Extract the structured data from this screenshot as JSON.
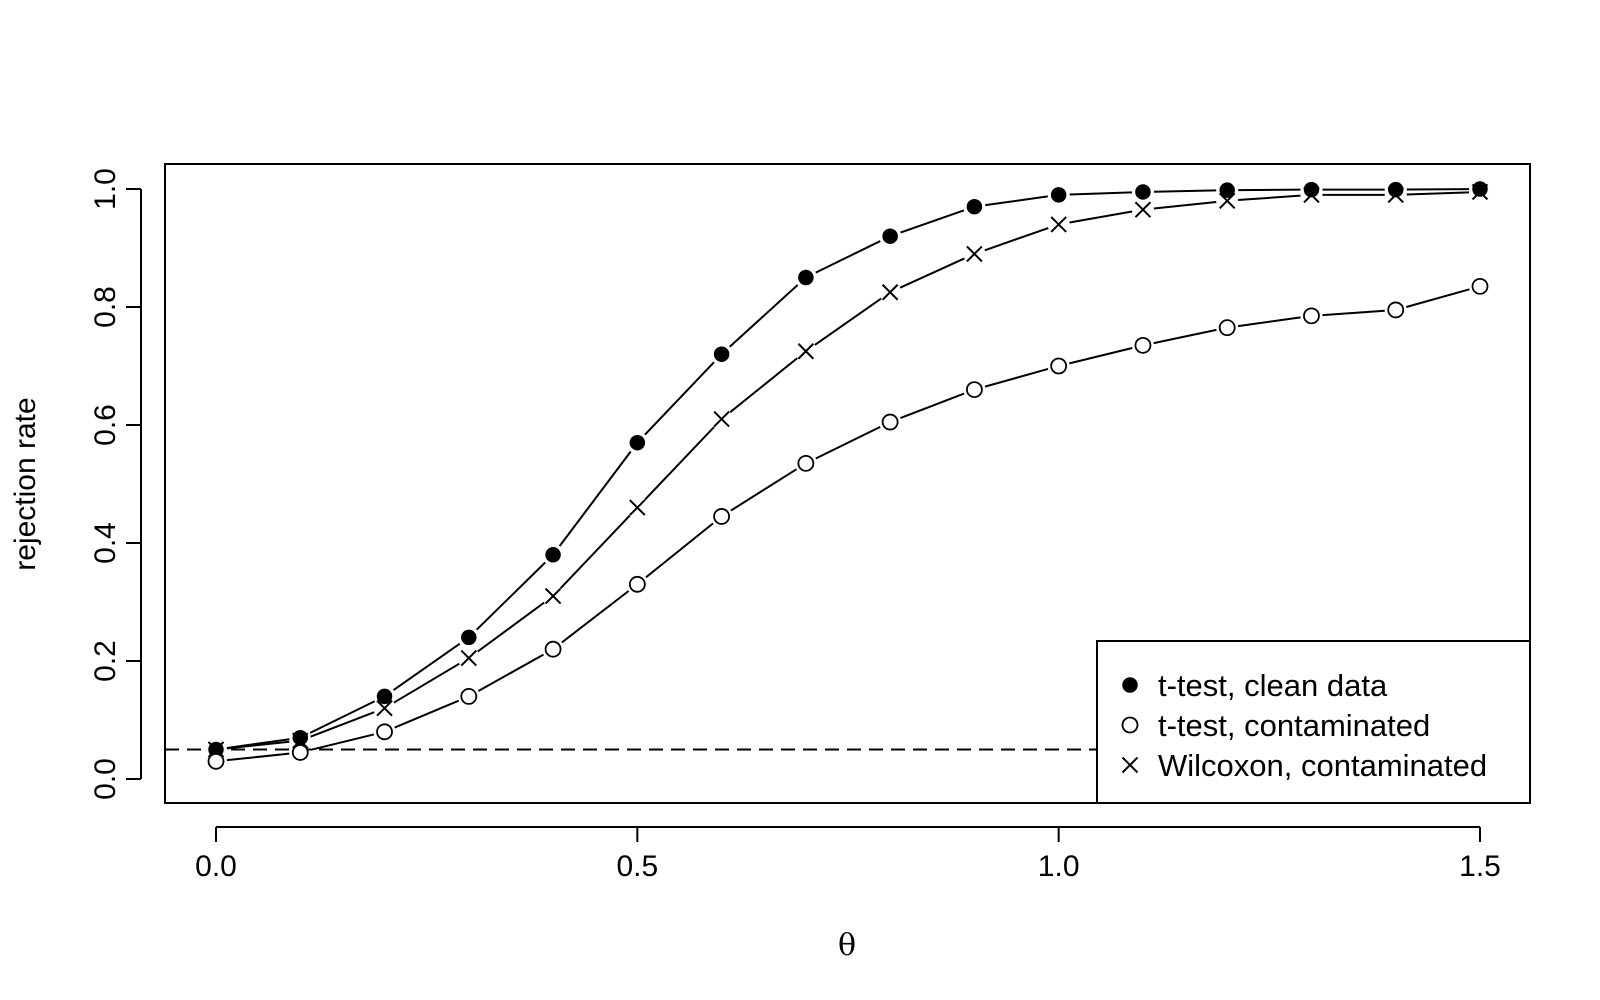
{
  "chart_data": {
    "type": "line",
    "title": "",
    "xlabel": "θ",
    "ylabel": "rejection rate",
    "xlim": [
      0,
      1.5
    ],
    "ylim": [
      0,
      1
    ],
    "x_ticks": [
      "0.0",
      "0.5",
      "1.0",
      "1.5"
    ],
    "y_ticks": [
      "0.0",
      "0.2",
      "0.4",
      "0.6",
      "0.8",
      "1.0"
    ],
    "x": [
      0.0,
      0.1,
      0.2,
      0.3,
      0.4,
      0.5,
      0.6,
      0.7,
      0.8,
      0.9,
      1.0,
      1.1,
      1.2,
      1.3,
      1.4,
      1.5
    ],
    "series": [
      {
        "name": "t-test, clean data",
        "marker": "filled-circle",
        "values": [
          0.05,
          0.07,
          0.14,
          0.24,
          0.38,
          0.57,
          0.72,
          0.85,
          0.92,
          0.97,
          0.99,
          0.995,
          0.998,
          0.999,
          0.999,
          1.0
        ]
      },
      {
        "name": "t-test, contaminated",
        "marker": "open-circle",
        "values": [
          0.03,
          0.045,
          0.08,
          0.14,
          0.22,
          0.33,
          0.445,
          0.535,
          0.605,
          0.66,
          0.7,
          0.735,
          0.765,
          0.785,
          0.795,
          0.835
        ]
      },
      {
        "name": "Wilcoxon, contaminated",
        "marker": "cross",
        "values": [
          0.05,
          0.065,
          0.12,
          0.205,
          0.31,
          0.46,
          0.61,
          0.725,
          0.825,
          0.89,
          0.94,
          0.965,
          0.98,
          0.99,
          0.99,
          0.995
        ]
      }
    ],
    "reference_line": {
      "y": 0.05,
      "style": "dashed"
    },
    "legend_position": "bottom-right",
    "grid": false
  }
}
